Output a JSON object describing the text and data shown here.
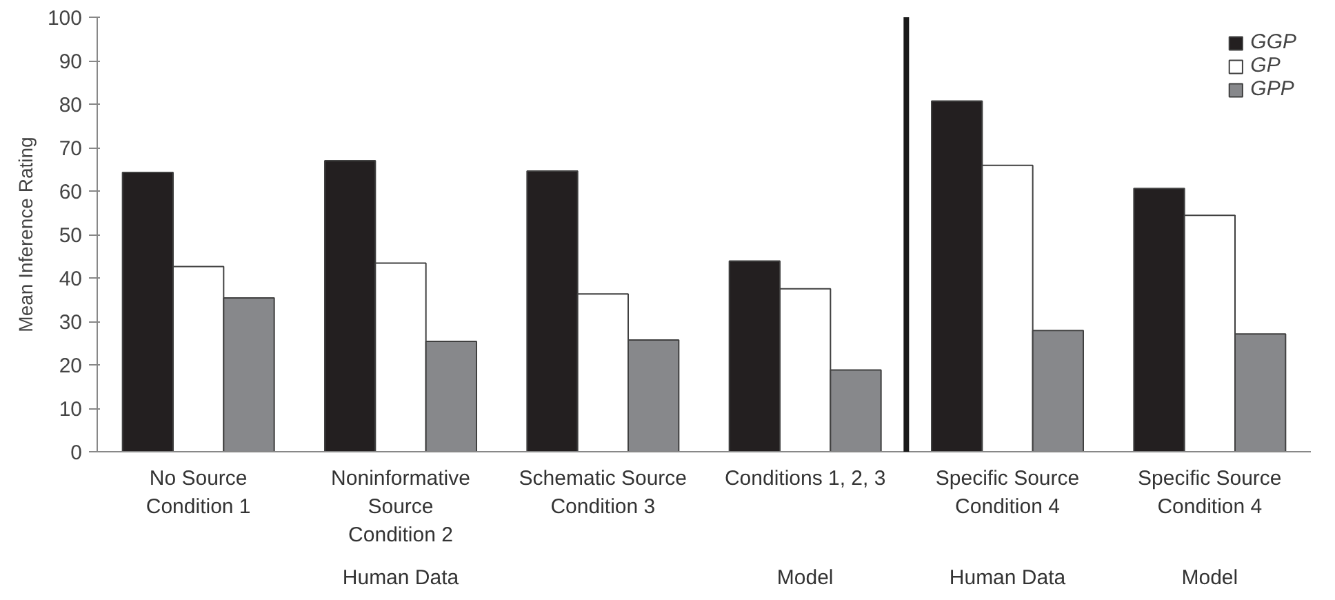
{
  "chart_data": {
    "type": "bar",
    "ylabel": "Mean Inference Rating",
    "categories": [
      "No Source\nCondition 1",
      "Noninformative\nSource\nCondition 2",
      "Schematic Source\nCondition 3",
      "Conditions 1, 2, 3",
      "Specific Source\nCondition 4",
      "Specific Source\nCondition 4"
    ],
    "series": [
      {
        "name": "GGP",
        "color": "#231f20",
        "values": [
          64.3,
          67.0,
          64.6,
          43.9,
          80.7,
          60.6
        ]
      },
      {
        "name": "GP",
        "color": "#ffffff",
        "values": [
          42.6,
          43.4,
          36.3,
          37.5,
          65.9,
          54.4
        ]
      },
      {
        "name": "GPP",
        "color": "#87888b",
        "values": [
          35.4,
          25.4,
          25.7,
          18.8,
          27.9,
          27.1
        ]
      }
    ],
    "annotations": [
      "Human Data",
      "Model",
      "Human Data",
      "Model"
    ],
    "ylim": [
      0,
      100
    ],
    "yticks": [
      0,
      10,
      20,
      30,
      40,
      50,
      60,
      70,
      80,
      90,
      100
    ],
    "grid": false,
    "legend": "top right"
  }
}
